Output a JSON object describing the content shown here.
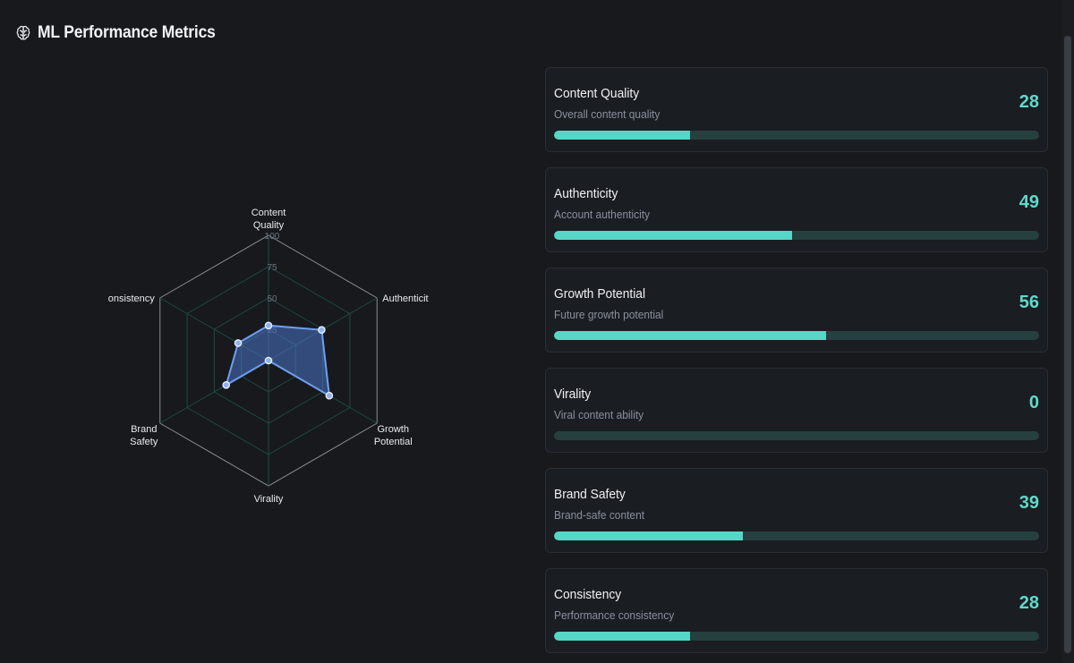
{
  "header": {
    "title": "ML Performance Metrics",
    "icon": "brain-icon"
  },
  "radar": {
    "axes": [
      {
        "lines": [
          "Content",
          "Quality"
        ]
      },
      {
        "lines": [
          "Authenticit"
        ]
      },
      {
        "lines": [
          "Growth",
          "Potential"
        ]
      },
      {
        "lines": [
          "Virality"
        ]
      },
      {
        "lines": [
          "Brand",
          "Safety"
        ]
      },
      {
        "lines": [
          "onsistency"
        ]
      }
    ],
    "ticks": [
      "25",
      "50",
      "75",
      "100"
    ],
    "fill_color": "#4a74c9",
    "stroke_color": "#6f9ff0"
  },
  "chart_data": {
    "type": "radar",
    "categories": [
      "Content Quality",
      "Authenticity",
      "Growth Potential",
      "Virality",
      "Brand Safety",
      "Consistency"
    ],
    "values": [
      28,
      49,
      56,
      0,
      39,
      28
    ],
    "rlim": [
      0,
      100
    ],
    "ticks": [
      25,
      50,
      75,
      100
    ]
  },
  "metrics": [
    {
      "name": "Content Quality",
      "desc": "Overall content quality",
      "value": 28
    },
    {
      "name": "Authenticity",
      "desc": "Account authenticity",
      "value": 49
    },
    {
      "name": "Growth Potential",
      "desc": "Future growth potential",
      "value": 56
    },
    {
      "name": "Virality",
      "desc": "Viral content ability",
      "value": 0
    },
    {
      "name": "Brand Safety",
      "desc": "Brand-safe content",
      "value": 39
    },
    {
      "name": "Consistency",
      "desc": "Performance consistency",
      "value": 28
    }
  ],
  "colors": {
    "accent": "#5fdacb",
    "bar_fill": "#56d6c6",
    "bar_track": "#25403f",
    "background": "#17191d"
  }
}
